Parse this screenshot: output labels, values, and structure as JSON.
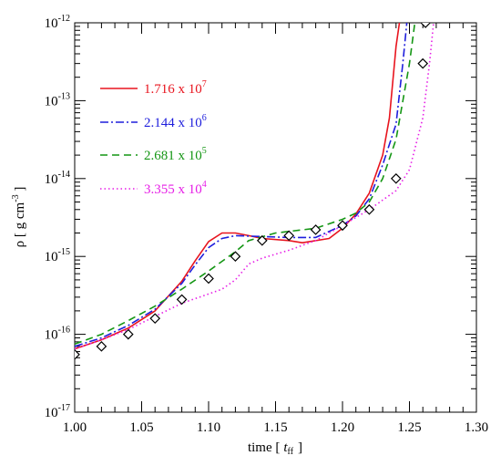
{
  "chart_data": {
    "type": "line",
    "x_scale": "linear",
    "y_scale": "log",
    "xlim": [
      1.0,
      1.3
    ],
    "ylim": [
      1e-17,
      1e-12
    ],
    "xlabel": {
      "main": "time  [",
      "var": "t",
      "sub": "ff",
      "close": "]"
    },
    "ylabel": {
      "main": "ρ  [ g cm",
      "sup": "-3",
      "close": " ]"
    },
    "x_ticks": [
      {
        "value": 1.0,
        "label": "1.00"
      },
      {
        "value": 1.05,
        "label": "1.05"
      },
      {
        "value": 1.1,
        "label": "1.10"
      },
      {
        "value": 1.15,
        "label": "1.15"
      },
      {
        "value": 1.2,
        "label": "1.20"
      },
      {
        "value": 1.25,
        "label": "1.25"
      },
      {
        "value": 1.3,
        "label": "1.30"
      }
    ],
    "y_ticks": [
      {
        "value": 1e-17,
        "base": "10",
        "exp": "-17"
      },
      {
        "value": 1e-16,
        "base": "10",
        "exp": "-16"
      },
      {
        "value": 1e-15,
        "base": "10",
        "exp": "-15"
      },
      {
        "value": 1e-14,
        "base": "10",
        "exp": "-14"
      },
      {
        "value": 1e-13,
        "base": "10",
        "exp": "-13"
      },
      {
        "value": 1e-12,
        "base": "10",
        "exp": "-12"
      }
    ],
    "grid": false,
    "legend_position": "upper-left",
    "series": [
      {
        "name": "1.716 x 10^7",
        "label_main": "1.716 x 10",
        "label_sup": "7",
        "color": "#e8141e",
        "dash": "none",
        "points": [
          [
            1.0,
            6.5e-17
          ],
          [
            1.02,
            8.5e-17
          ],
          [
            1.04,
            1.2e-16
          ],
          [
            1.06,
            2e-16
          ],
          [
            1.08,
            4.8e-16
          ],
          [
            1.09,
            8.8e-16
          ],
          [
            1.1,
            1.55e-15
          ],
          [
            1.11,
            2e-15
          ],
          [
            1.12,
            2e-15
          ],
          [
            1.13,
            1.85e-15
          ],
          [
            1.14,
            1.7e-15
          ],
          [
            1.16,
            1.6e-15
          ],
          [
            1.17,
            1.5e-15
          ],
          [
            1.19,
            1.7e-15
          ],
          [
            1.2,
            2.3e-15
          ],
          [
            1.21,
            3.5e-15
          ],
          [
            1.22,
            6.5e-15
          ],
          [
            1.23,
            2e-14
          ],
          [
            1.235,
            6e-14
          ],
          [
            1.24,
            5e-13
          ],
          [
            1.2425,
            1e-12
          ]
        ]
      },
      {
        "name": "2.144 x 10^6",
        "label_main": "2.144 x 10",
        "label_sup": "6",
        "color": "#1e1edc",
        "dash": "9 3 2 3",
        "points": [
          [
            1.0,
            7e-17
          ],
          [
            1.02,
            9e-17
          ],
          [
            1.04,
            1.3e-16
          ],
          [
            1.06,
            2.1e-16
          ],
          [
            1.08,
            4.5e-16
          ],
          [
            1.09,
            7.8e-16
          ],
          [
            1.1,
            1.3e-15
          ],
          [
            1.11,
            1.7e-15
          ],
          [
            1.12,
            1.85e-15
          ],
          [
            1.14,
            1.8e-15
          ],
          [
            1.16,
            1.75e-15
          ],
          [
            1.18,
            1.75e-15
          ],
          [
            1.2,
            2.5e-15
          ],
          [
            1.21,
            3.3e-15
          ],
          [
            1.22,
            5.5e-15
          ],
          [
            1.23,
            1.5e-14
          ],
          [
            1.24,
            5e-14
          ],
          [
            1.245,
            3e-13
          ],
          [
            1.248,
            1e-12
          ]
        ]
      },
      {
        "name": "2.681 x 10^5",
        "label_main": "2.681 x 10",
        "label_sup": "5",
        "color": "#149614",
        "dash": "8 5",
        "points": [
          [
            1.0,
            7.5e-17
          ],
          [
            1.02,
            1e-16
          ],
          [
            1.04,
            1.5e-16
          ],
          [
            1.06,
            2.3e-16
          ],
          [
            1.08,
            3.8e-16
          ],
          [
            1.1,
            6.5e-16
          ],
          [
            1.12,
            1.15e-15
          ],
          [
            1.13,
            1.6e-15
          ],
          [
            1.15,
            2e-15
          ],
          [
            1.18,
            2.3e-15
          ],
          [
            1.2,
            3e-15
          ],
          [
            1.21,
            3.6e-15
          ],
          [
            1.22,
            5e-15
          ],
          [
            1.23,
            1e-14
          ],
          [
            1.24,
            3.2e-14
          ],
          [
            1.25,
            3e-13
          ],
          [
            1.254,
            1e-12
          ]
        ]
      },
      {
        "name": "3.355 x 10^4",
        "label_main": "3.355 x 10",
        "label_sup": "4",
        "color": "#e61ee6",
        "dash": "1.5 3",
        "points": [
          [
            1.0,
            6.5e-17
          ],
          [
            1.02,
            8.5e-17
          ],
          [
            1.04,
            1.15e-16
          ],
          [
            1.06,
            1.7e-16
          ],
          [
            1.08,
            2.5e-16
          ],
          [
            1.1,
            3.3e-16
          ],
          [
            1.11,
            3.8e-16
          ],
          [
            1.12,
            5e-16
          ],
          [
            1.13,
            8e-16
          ],
          [
            1.14,
            9.5e-16
          ],
          [
            1.16,
            1.2e-15
          ],
          [
            1.18,
            1.6e-15
          ],
          [
            1.2,
            2.5e-15
          ],
          [
            1.22,
            4e-15
          ],
          [
            1.24,
            7e-15
          ],
          [
            1.25,
            1.3e-14
          ],
          [
            1.26,
            6e-14
          ],
          [
            1.265,
            3e-13
          ],
          [
            1.268,
            1e-12
          ]
        ]
      }
    ],
    "markers": {
      "shape": "diamond",
      "points": [
        [
          1.0,
          5.5e-17
        ],
        [
          1.02,
          7e-17
        ],
        [
          1.04,
          1e-16
        ],
        [
          1.06,
          1.6e-16
        ],
        [
          1.08,
          2.8e-16
        ],
        [
          1.1,
          5.2e-16
        ],
        [
          1.12,
          1e-15
        ],
        [
          1.14,
          1.6e-15
        ],
        [
          1.16,
          1.85e-15
        ],
        [
          1.18,
          2.2e-15
        ],
        [
          1.2,
          2.5e-15
        ],
        [
          1.22,
          4e-15
        ],
        [
          1.24,
          1e-14
        ],
        [
          1.26,
          3e-13
        ],
        [
          1.262,
          1e-12
        ]
      ]
    }
  }
}
